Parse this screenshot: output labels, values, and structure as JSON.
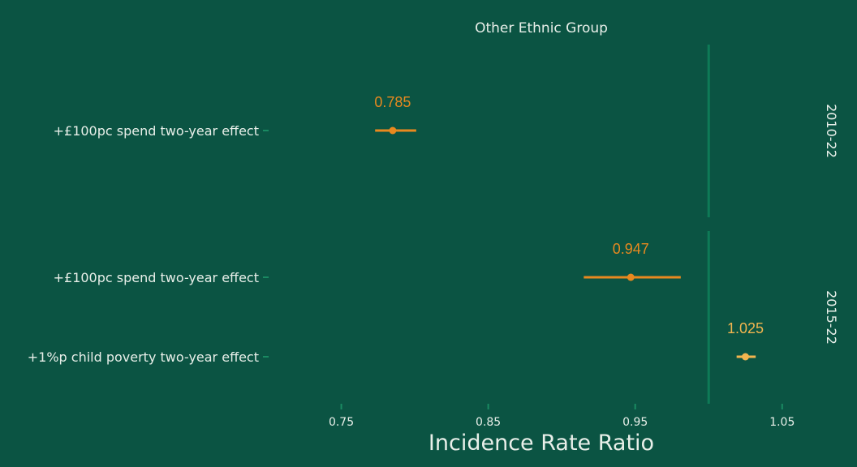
{
  "chart_data": {
    "type": "forest",
    "facet_title": "Other Ethnic Group",
    "xlabel": "Incidence Rate Ratio",
    "x_ticks": [
      0.75,
      0.85,
      0.95,
      1.05
    ],
    "x_tick_labels": [
      "0.75",
      "0.85",
      "0.95",
      "1.05"
    ],
    "xlim": [
      0.7,
      1.07
    ],
    "reference_line": 1.0,
    "panels": [
      {
        "label": "2010-22",
        "rows": [
          {
            "name": "+£100pc spend two-year effect",
            "estimate": 0.785,
            "label": "0.785",
            "lower": 0.773,
            "upper": 0.801,
            "color": "#e8891f"
          }
        ]
      },
      {
        "label": "2015-22",
        "rows": [
          {
            "name": "+£100pc spend two-year effect",
            "estimate": 0.947,
            "label": "0.947",
            "lower": 0.915,
            "upper": 0.981,
            "color": "#e8891f"
          },
          {
            "name": "+1%p child poverty two-year effect",
            "estimate": 1.025,
            "label": "1.025",
            "lower": 1.019,
            "upper": 1.032,
            "color": "#f2b54f"
          }
        ]
      }
    ]
  },
  "colors": {
    "background": "#0b5443",
    "reference_line": "#0e7a57",
    "tick": "#1a8a62",
    "text": "#e8efe9"
  }
}
